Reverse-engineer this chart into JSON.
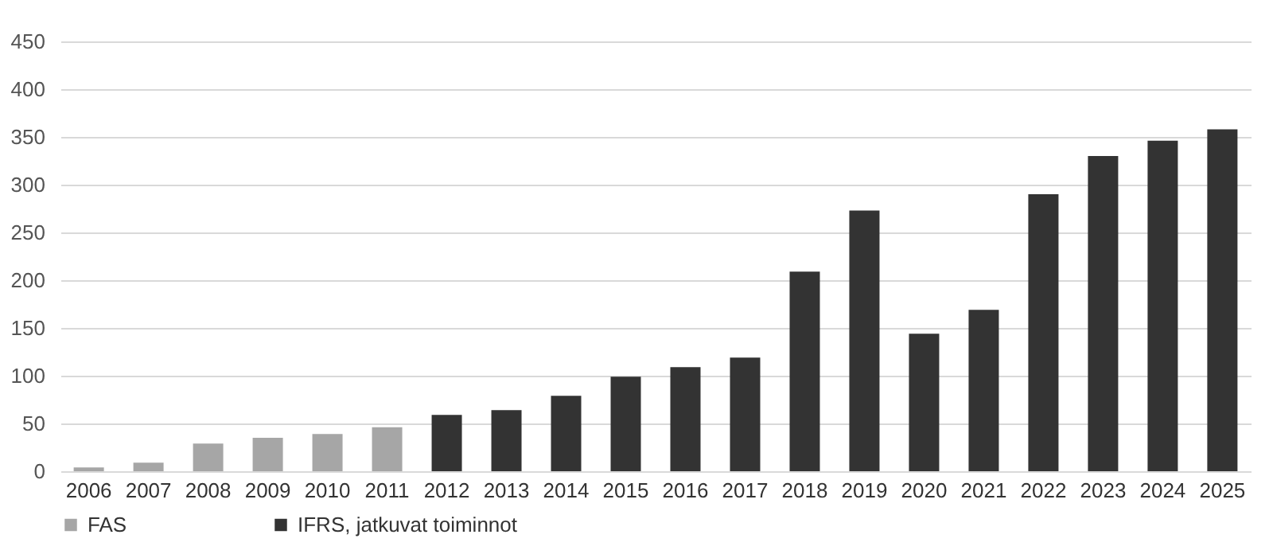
{
  "chart_data": {
    "type": "bar",
    "categories": [
      "2006",
      "2007",
      "2008",
      "2009",
      "2010",
      "2011",
      "2012",
      "2013",
      "2014",
      "2015",
      "2016",
      "2017",
      "2018",
      "2019",
      "2020",
      "2021",
      "2022",
      "2023",
      "2024",
      "2025"
    ],
    "series": [
      {
        "name": "FAS",
        "color": "#a6a6a6",
        "values": [
          4,
          9,
          29,
          35,
          39,
          46,
          null,
          null,
          null,
          null,
          null,
          null,
          null,
          null,
          null,
          null,
          null,
          null,
          null,
          null
        ]
      },
      {
        "name": "IFRS, jatkuvat toiminnot",
        "color": "#333333",
        "values": [
          null,
          null,
          null,
          null,
          null,
          null,
          59,
          64,
          79,
          99,
          109,
          119,
          209,
          273,
          144,
          169,
          290,
          330,
          346,
          358
        ]
      }
    ],
    "ylim": [
      0,
      450
    ],
    "yticks": [
      0,
      50,
      100,
      150,
      200,
      250,
      300,
      350,
      400,
      450
    ],
    "grid": "y",
    "legend": "bottom"
  }
}
